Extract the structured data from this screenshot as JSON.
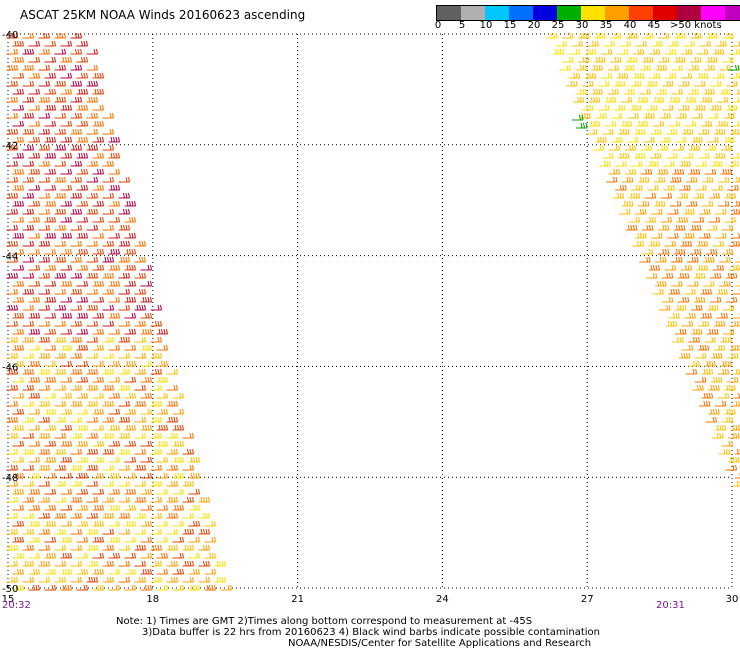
{
  "header": {
    "title": "ASCAT 25KM NOAA Winds 20160623 ascending"
  },
  "legend": {
    "colors": [
      "#606060",
      "#b0b0b0",
      "#00c8ff",
      "#0070ff",
      "#0000e0",
      "#00b000",
      "#ffe000",
      "#ffa000",
      "#ff4000",
      "#e00000",
      "#b00040",
      "#ff00ff",
      "#c000c0",
      "#600080"
    ],
    "labels": [
      "0",
      "5",
      "10",
      "15",
      "20",
      "25",
      "30",
      "35",
      "40",
      "45",
      ">50 knots"
    ]
  },
  "map": {
    "x_ticks": [
      "15",
      "18",
      "21",
      "24",
      "27",
      "30"
    ],
    "y_ticks": [
      "-40",
      "-42",
      "-44",
      "-46",
      "-48",
      "-50"
    ],
    "lon_range": [
      15,
      30
    ],
    "lat_range": [
      -50,
      -40
    ]
  },
  "times": {
    "left": "20:32",
    "right": "20:31"
  },
  "notes": {
    "line1": "Note: 1) Times are GMT 2)Times along bottom correspond to measurement at -45S",
    "line2": "3)Data buffer is 22 hrs from 20160623 4) Black wind barbs indicate possible contamination",
    "line3": "NOAA/NESDIS/Center for Satellite Applications and Research"
  }
}
